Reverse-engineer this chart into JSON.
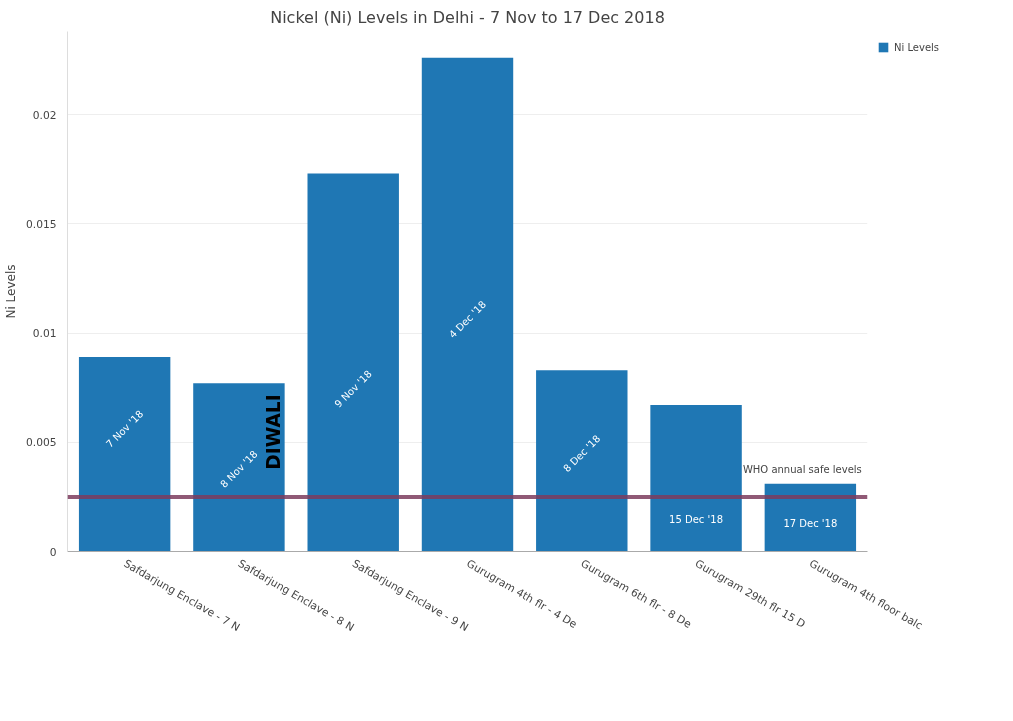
{
  "chart_data": {
    "type": "bar",
    "title": "Nickel (Ni) Levels in Delhi - 7 Nov to 17 Dec 2018",
    "ylabel": "Ni Levels",
    "categories": [
      "Safdarjung Enclave - 7 N",
      "Safdarjung Enclave - 8 N",
      "Safdarjung Enclave - 9 N",
      "Gurugram 4th flr - 4 De",
      "Gurugram 6th flr - 8 De",
      "Gurugram 29th flr 15 D",
      "Gurugram 4th floor balc"
    ],
    "series": [
      {
        "name": "Ni Levels",
        "color": "#1f77b4",
        "values": [
          0.0089,
          0.0077,
          0.0173,
          0.0226,
          0.0083,
          0.0067,
          0.0031
        ]
      }
    ],
    "ylim": [
      0,
      0.0238
    ],
    "yticks": [
      0,
      0.005,
      0.01,
      0.015,
      0.02
    ],
    "grid": "y",
    "legend": "top right",
    "ref_lines": [
      {
        "axis": "y",
        "value": 0.0025,
        "label": "WHO annual safe levels",
        "color": "#7d3c5e"
      }
    ],
    "annotations": [
      "7 Nov '18",
      "8 Nov '18",
      "9 Nov '18",
      "4 Dec '18",
      "8 Dec '18",
      "15 Dec '18",
      "17 Dec '18",
      "DIWALI"
    ]
  }
}
